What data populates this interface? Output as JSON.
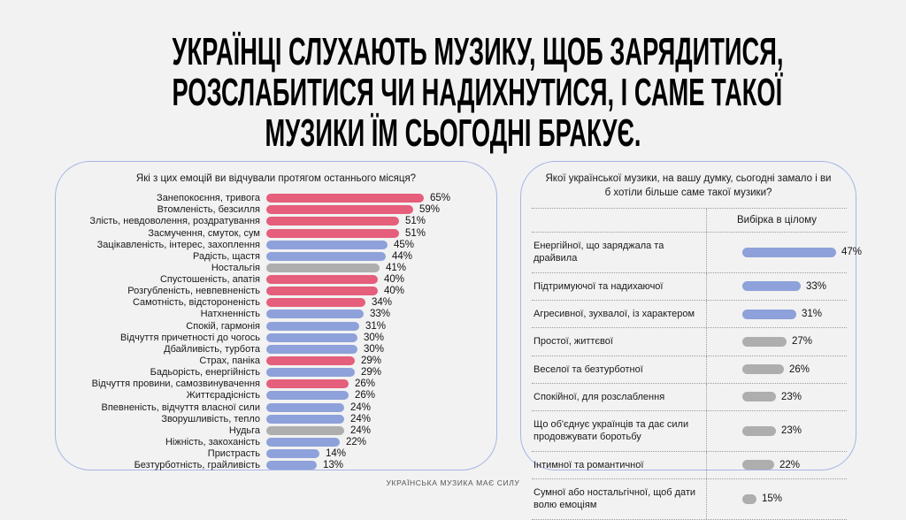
{
  "title": {
    "lines": [
      "УКРАЇНЦІ СЛУХАЮТЬ МУЗИКУ, ЩОБ ЗАРЯДИТИСЯ,",
      "РОЗСЛАБИТИСЯ ЧИ НАДИХНУТИСЯ, І САМЕ ТАКОЇ",
      "МУЗИКИ ЇМ СЬОГОДНІ БРАКУЄ."
    ]
  },
  "palette": {
    "red": "#e55e7b",
    "blue": "#8ea1da",
    "gray": "#aeaeae",
    "panel_border": "#a6b5e5",
    "background": "#f2f2f2"
  },
  "footer": "УКРАЇНСЬКА МУЗИКА МАЄ СИЛУ",
  "chart_data": [
    {
      "type": "bar",
      "orientation": "horizontal",
      "title": "Які з цих емоцій ви відчували протягом останнього місяця?",
      "unit": "%",
      "value_range": [
        0,
        65
      ],
      "grid": false,
      "legend": "none",
      "categories": [
        "Занепокоєння, тривога",
        "Втомленість, безсилля",
        "Злість, невдоволення, роздратування",
        "Засмучення, смуток, сум",
        "Зацікавленість, інтерес, захоплення",
        "Радість, щастя",
        "Ностальгія",
        "Спустошеність, апатія",
        "Розгубленість, невпевненість",
        "Самотність, відстороненість",
        "Натхненність",
        "Спокій, гармонія",
        "Відчуття причетності до чогось",
        "Дбайливість, турбота",
        "Страх, паніка",
        "Бадьорість, енергійність",
        "Відчуття провини, самозвинувачення",
        "Життєрадісність",
        "Впевненість, відчуття власної сили",
        "Зворушливість, тепло",
        "Нудьга",
        "Ніжність, закоханість",
        "Пристрасть",
        "Безтурботність, грайливість"
      ],
      "values": [
        65,
        59,
        51,
        51,
        45,
        44,
        41,
        40,
        40,
        34,
        33,
        31,
        30,
        30,
        29,
        29,
        26,
        26,
        24,
        24,
        24,
        22,
        14,
        13
      ],
      "colors": [
        "red",
        "red",
        "red",
        "red",
        "blue",
        "blue",
        "gray",
        "red",
        "red",
        "red",
        "blue",
        "blue",
        "blue",
        "blue",
        "red",
        "blue",
        "red",
        "blue",
        "blue",
        "blue",
        "gray",
        "blue",
        "blue",
        "blue"
      ]
    },
    {
      "type": "bar",
      "orientation": "horizontal",
      "title": "Якої української музики, на вашу думку, сьогодні замало і ви б хотіли більше саме такої музики?",
      "column_header": "Вибірка в цілому",
      "unit": "%",
      "value_range": [
        0,
        47
      ],
      "grid": false,
      "legend": "none",
      "categories": [
        "Енергійної, що заряджала та драйвила",
        "Підтримуючої та надихаючої",
        "Агресивної, зухвалої, із характером",
        "Простої, життєвої",
        "Веселої та безтурботної",
        "Спокійної, для розслаблення",
        "Що об'єднує українців та дає сили продовжувати боротьбу",
        "Інтимної та романтичної",
        "Сумної або ностальгічної, щоб дати волю емоціям"
      ],
      "values": [
        47,
        33,
        31,
        27,
        26,
        23,
        23,
        22,
        15
      ],
      "colors": [
        "blue",
        "blue",
        "blue",
        "gray",
        "gray",
        "gray",
        "gray",
        "gray",
        "gray"
      ]
    }
  ]
}
